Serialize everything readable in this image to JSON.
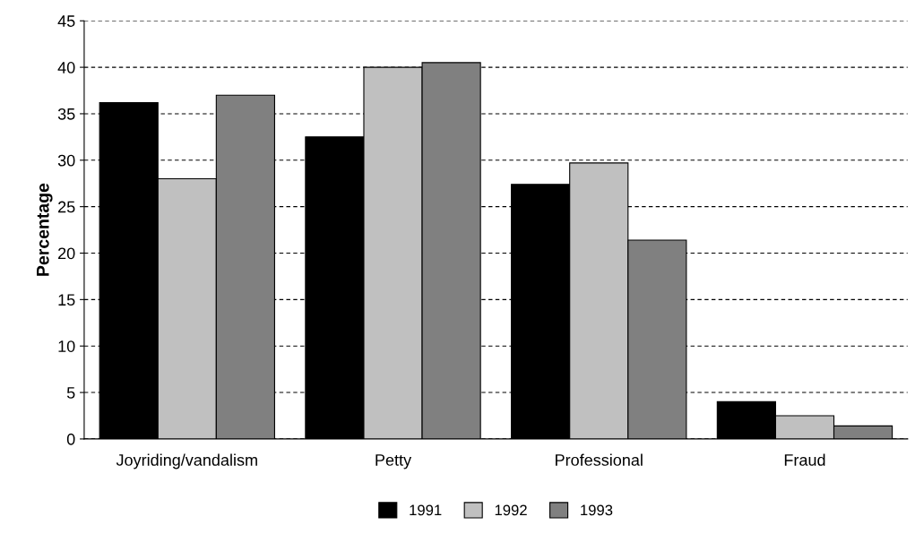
{
  "chart_data": {
    "type": "bar",
    "ylabel": "Percentage",
    "categories": [
      "Joyriding/vandalism",
      "Petty",
      "Professional",
      "Fraud"
    ],
    "series": [
      {
        "name": "1991",
        "color": "#000000",
        "values": [
          36.2,
          32.5,
          27.4,
          4.0
        ]
      },
      {
        "name": "1992",
        "color": "#c0c0c0",
        "values": [
          28.0,
          40.0,
          29.7,
          2.5
        ]
      },
      {
        "name": "1993",
        "color": "#808080",
        "values": [
          37.0,
          40.5,
          21.4,
          1.4
        ]
      }
    ],
    "ylim": [
      0,
      45
    ],
    "yticks": [
      0,
      5,
      10,
      15,
      20,
      25,
      30,
      35,
      40,
      45
    ],
    "grid": "y",
    "legend": "bottom",
    "line_style": "dashed"
  }
}
